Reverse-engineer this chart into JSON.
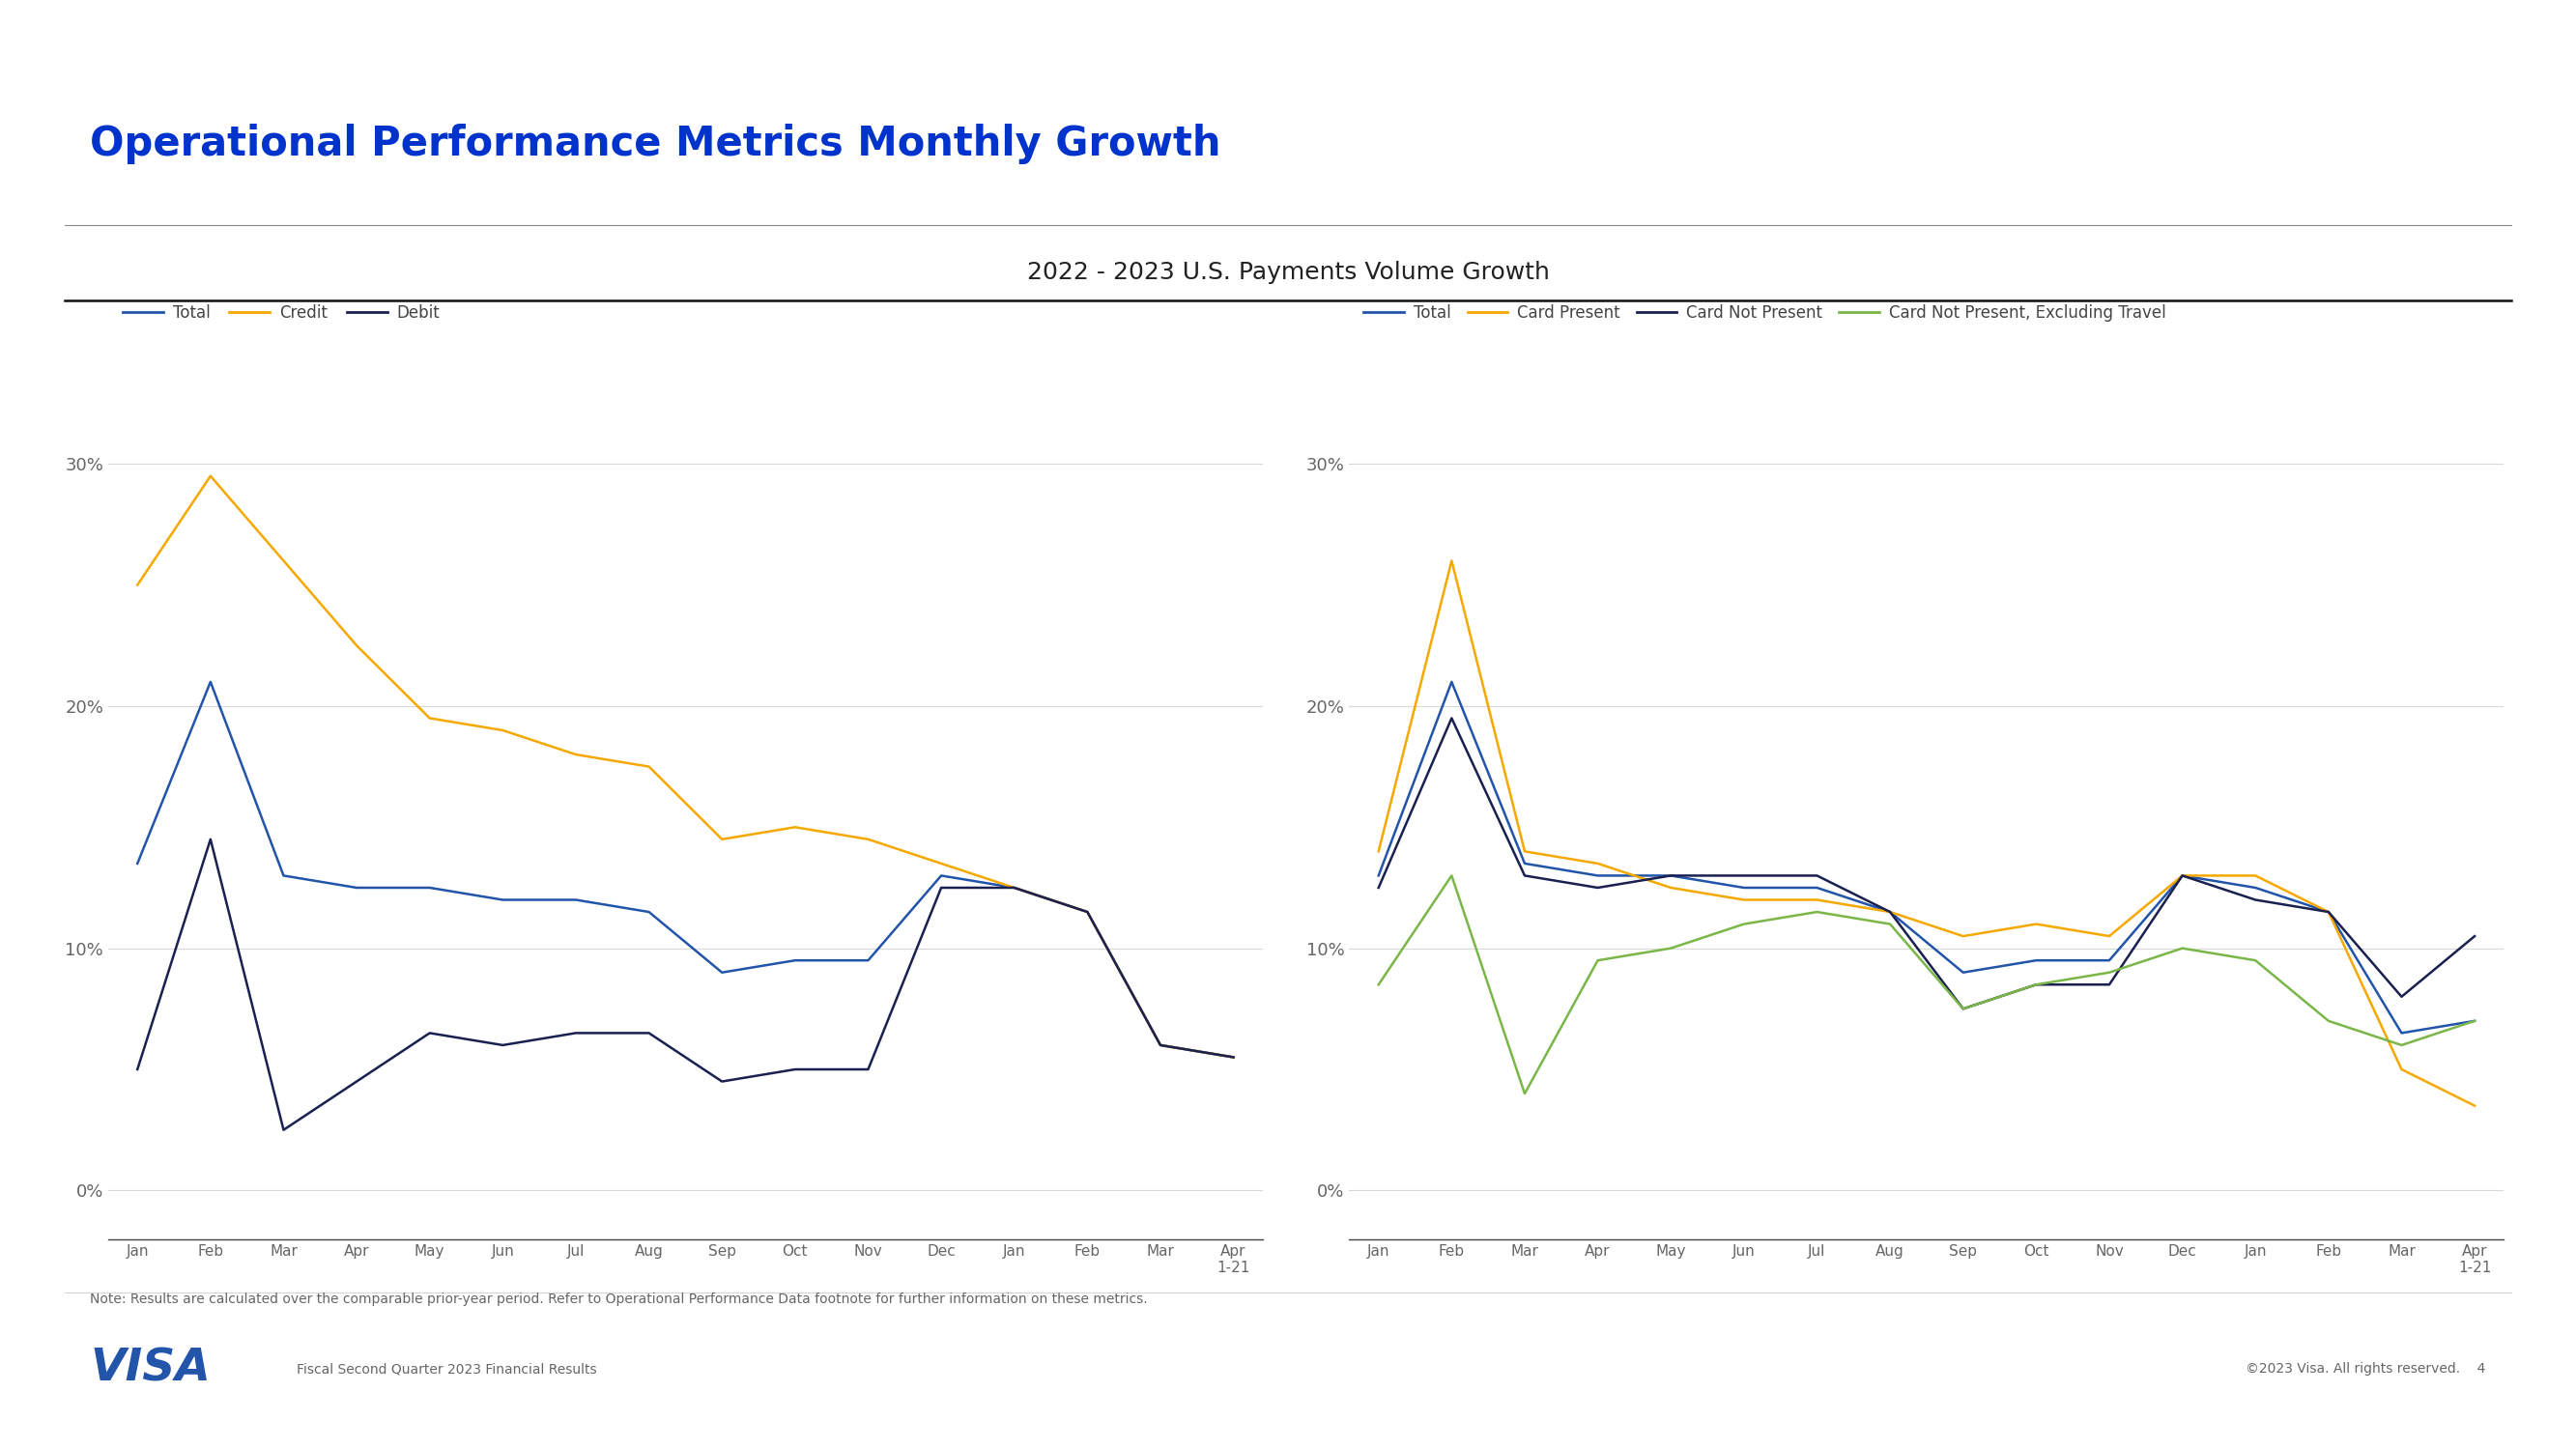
{
  "title": "2022 - 2023 U.S. Payments Volume Growth",
  "slide_title": "Operational Performance Metrics Monthly Growth",
  "background_color": "#ffffff",
  "left_x_labels": [
    "Jan",
    "Feb",
    "Mar",
    "Apr",
    "May",
    "Jun",
    "Jul",
    "Aug",
    "Sep",
    "Oct",
    "Nov",
    "Dec",
    "Jan",
    "Feb",
    "Mar",
    "Apr\n1-21"
  ],
  "right_x_labels": [
    "Jan",
    "Feb",
    "Mar",
    "Apr",
    "May",
    "Jun",
    "Jul",
    "Aug",
    "Sep",
    "Oct",
    "Nov",
    "Dec",
    "Jan",
    "Feb",
    "Mar",
    "Apr\n1-21"
  ],
  "left_total": [
    13.5,
    21.0,
    13.0,
    12.5,
    12.5,
    12.0,
    12.0,
    11.5,
    9.0,
    9.5,
    9.5,
    13.0,
    12.5,
    11.5,
    6.0,
    5.5
  ],
  "left_credit": [
    25.0,
    29.5,
    26.0,
    22.5,
    19.5,
    19.0,
    18.0,
    17.5,
    14.5,
    15.0,
    14.5,
    13.5,
    12.5,
    11.5,
    6.0,
    5.5
  ],
  "left_debit": [
    5.0,
    14.5,
    2.5,
    4.5,
    6.5,
    6.0,
    6.5,
    6.5,
    4.5,
    5.0,
    5.0,
    12.5,
    12.5,
    11.5,
    6.0,
    5.5
  ],
  "right_total": [
    13.0,
    21.0,
    13.5,
    13.0,
    13.0,
    12.5,
    12.5,
    11.5,
    9.0,
    9.5,
    9.5,
    13.0,
    12.5,
    11.5,
    6.5,
    7.0
  ],
  "right_card_present": [
    14.0,
    26.0,
    14.0,
    13.5,
    12.5,
    12.0,
    12.0,
    11.5,
    10.5,
    11.0,
    10.5,
    13.0,
    13.0,
    11.5,
    5.0,
    3.5
  ],
  "right_card_not_present": [
    12.5,
    19.5,
    13.0,
    12.5,
    13.0,
    13.0,
    13.0,
    11.5,
    7.5,
    8.5,
    8.5,
    13.0,
    12.0,
    11.5,
    8.0,
    10.5
  ],
  "right_card_not_present_ex_travel": [
    8.5,
    13.0,
    4.0,
    9.5,
    10.0,
    11.0,
    11.5,
    11.0,
    7.5,
    8.5,
    9.0,
    10.0,
    9.5,
    7.0,
    6.0,
    7.0
  ],
  "color_blue": "#2255aa",
  "color_gold": "#f5a800",
  "color_darknavy": "#1a2050",
  "color_green": "#7ab648",
  "color_gray_line": "#d8d8d8",
  "color_slide_title": "#0033cc",
  "color_top_line": "#1a3a7c",
  "color_axis_text": "#666666",
  "color_black_line": "#111111",
  "yticks": [
    0,
    10,
    20,
    30
  ],
  "ylim": [
    -2,
    33
  ],
  "note_text": "Note: Results are calculated over the comparable prior-year period. Refer to Operational Performance Data footnote for further information on these metrics.",
  "footer_left": "Fiscal Second Quarter 2023 Financial Results",
  "footer_right": "©2023 Visa. All rights reserved.",
  "footer_page": "4"
}
